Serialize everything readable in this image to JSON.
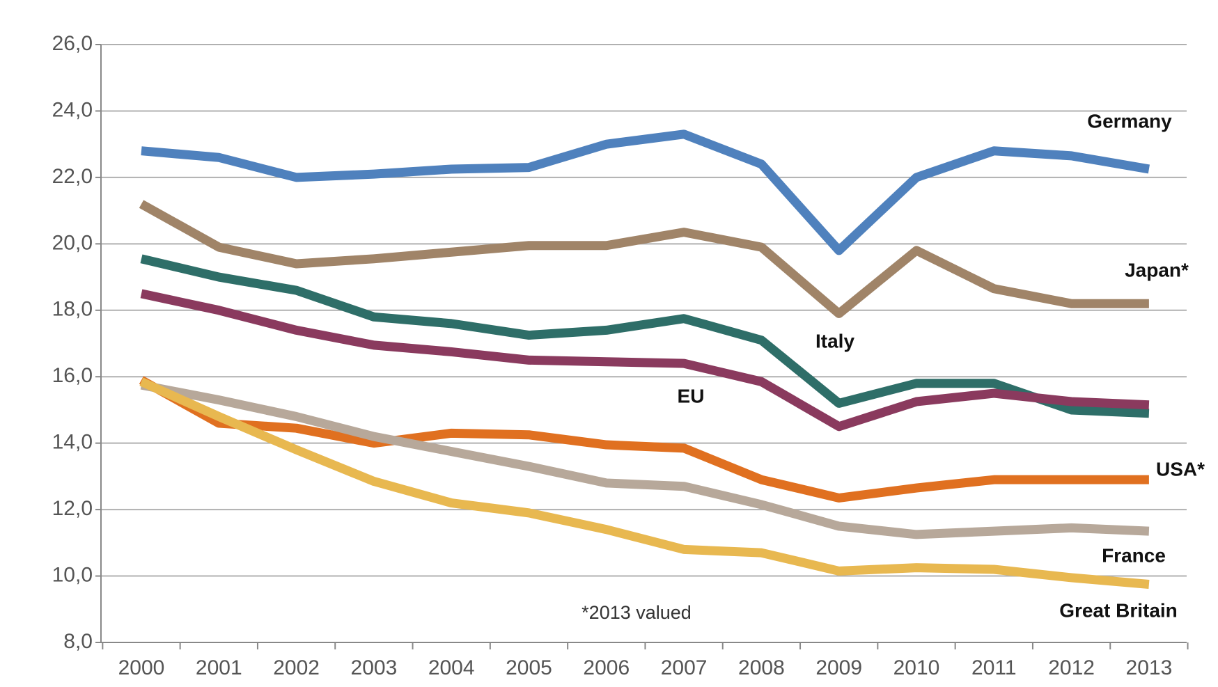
{
  "chart_data": {
    "type": "line",
    "x": [
      "2000",
      "2001",
      "2002",
      "2003",
      "2004",
      "2005",
      "2006",
      "2007",
      "2008",
      "2009",
      "2010",
      "2011",
      "2012",
      "2013"
    ],
    "ylim": [
      8,
      26
    ],
    "yticks": [
      {
        "value": 8,
        "label": "8,0"
      },
      {
        "value": 10,
        "label": "10,0"
      },
      {
        "value": 12,
        "label": "12,0"
      },
      {
        "value": 14,
        "label": "14,0"
      },
      {
        "value": 16,
        "label": "16,0"
      },
      {
        "value": 18,
        "label": "18,0"
      },
      {
        "value": 20,
        "label": "20,0"
      },
      {
        "value": 22,
        "label": "22,0"
      },
      {
        "value": 24,
        "label": "24,0"
      },
      {
        "value": 26,
        "label": "26,0"
      }
    ],
    "grid": true,
    "annotation": "*2013 valued",
    "series": [
      {
        "name": "Germany",
        "color": "#4f81bd",
        "values": [
          22.8,
          22.6,
          22.0,
          22.1,
          22.25,
          22.3,
          23.0,
          23.3,
          22.4,
          19.8,
          22.0,
          22.8,
          22.65,
          22.25
        ]
      },
      {
        "name": "Japan*",
        "color": "#a08468",
        "values": [
          21.2,
          19.9,
          19.4,
          19.55,
          19.75,
          19.95,
          19.95,
          20.35,
          19.9,
          17.9,
          19.8,
          18.65,
          18.2,
          18.2
        ]
      },
      {
        "name": "Italy",
        "color": "#2e6e68",
        "values": [
          19.55,
          19.0,
          18.6,
          17.8,
          17.6,
          17.25,
          17.4,
          17.75,
          17.1,
          15.2,
          15.8,
          15.8,
          15.0,
          14.9
        ]
      },
      {
        "name": "EU",
        "color": "#8a3a5e",
        "values": [
          18.5,
          18.0,
          17.4,
          16.95,
          16.75,
          16.5,
          16.45,
          16.4,
          15.85,
          14.5,
          15.25,
          15.5,
          15.25,
          15.15
        ]
      },
      {
        "name": "USA*",
        "color": "#e07020",
        "values": [
          15.9,
          14.6,
          14.45,
          14.0,
          14.3,
          14.25,
          13.95,
          13.85,
          12.9,
          12.35,
          12.65,
          12.9,
          12.9,
          12.9
        ]
      },
      {
        "name": "France",
        "color": "#b7a89a",
        "values": [
          15.75,
          15.3,
          14.8,
          14.2,
          13.75,
          13.3,
          12.8,
          12.7,
          12.15,
          11.5,
          11.25,
          11.35,
          11.45,
          11.35
        ]
      },
      {
        "name": "Great Britain",
        "color": "#e8b850",
        "values": [
          15.85,
          14.8,
          13.8,
          12.85,
          12.2,
          11.9,
          11.4,
          10.8,
          10.7,
          10.15,
          10.25,
          10.2,
          9.95,
          9.75
        ]
      }
    ]
  }
}
